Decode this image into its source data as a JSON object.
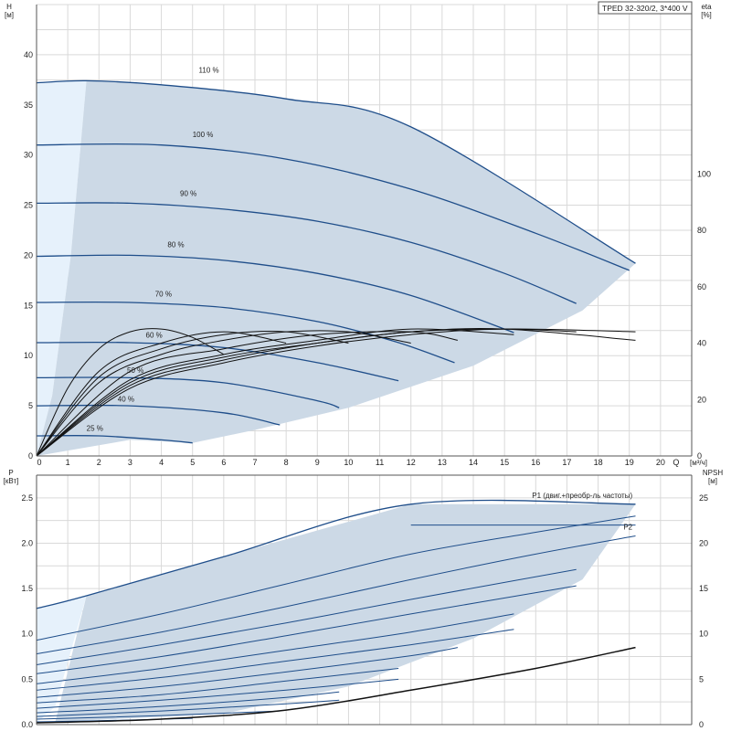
{
  "title": "TPED 32-320/2, 3*400 V",
  "colors": {
    "curve": "#1f4e8a",
    "region": "#ccd9e6",
    "light_region": "#e6f1fb",
    "efficiency": "#111111"
  },
  "chart_data": [
    {
      "type": "line",
      "name": "head",
      "y_axis_label": "H",
      "y_axis_unit": "[м]",
      "right_axis_label": "eta",
      "right_axis_unit": "[%]",
      "x_axis_label": "Q",
      "x_axis_unit": "[м³/ч]",
      "xlim": [
        0,
        21
      ],
      "ylim": [
        0,
        45
      ],
      "right_ylim": [
        0,
        160
      ],
      "x_ticks": [
        "0",
        "1",
        "2",
        "3",
        "4",
        "5",
        "6",
        "7",
        "8",
        "9",
        "10",
        "11",
        "12",
        "13",
        "14",
        "15",
        "16",
        "17",
        "18",
        "19",
        "20"
      ],
      "y_ticks": [
        "0",
        "5",
        "10",
        "15",
        "20",
        "25",
        "30",
        "35",
        "40"
      ],
      "right_ticks": [
        "0",
        "20",
        "40",
        "60",
        "80",
        "100"
      ],
      "grid": true,
      "speed_curves": [
        {
          "label": "110 %",
          "x": [
            0,
            1.6,
            4,
            8,
            12,
            19.2
          ],
          "y": [
            37.2,
            37.4,
            37.0,
            35.6,
            32.8,
            19.2
          ]
        },
        {
          "label": "100 %",
          "x": [
            0,
            4,
            8,
            12,
            16,
            19.0
          ],
          "y": [
            31.0,
            31.0,
            29.6,
            26.6,
            22.2,
            18.5
          ]
        },
        {
          "label": "90 %",
          "x": [
            0,
            3,
            6,
            9,
            12,
            15,
            17.3
          ],
          "y": [
            25.2,
            25.2,
            24.6,
            23.4,
            21.3,
            18.2,
            15.2
          ]
        },
        {
          "label": "80 %",
          "x": [
            0,
            3,
            6,
            9,
            12,
            15.3
          ],
          "y": [
            19.9,
            20.0,
            19.5,
            18.2,
            16.0,
            12.3
          ]
        },
        {
          "label": "70 %",
          "x": [
            0,
            3,
            6,
            9,
            11.5,
            13.4
          ],
          "y": [
            15.3,
            15.3,
            14.8,
            13.4,
            11.4,
            9.3
          ]
        },
        {
          "label": "60 %",
          "x": [
            0,
            3,
            6,
            9,
            11.6
          ],
          "y": [
            11.3,
            11.3,
            10.8,
            9.3,
            7.5
          ]
        },
        {
          "label": "50 %",
          "x": [
            0,
            3,
            6,
            9,
            9.7
          ],
          "y": [
            7.8,
            7.8,
            7.3,
            5.5,
            4.8
          ]
        },
        {
          "label": "40 %",
          "x": [
            0,
            3,
            6,
            7.8
          ],
          "y": [
            5.0,
            5.0,
            4.3,
            3.1
          ]
        },
        {
          "label": "25 %",
          "x": [
            0,
            2,
            4,
            5.0
          ],
          "y": [
            2.0,
            2.0,
            1.6,
            1.3
          ]
        }
      ],
      "efficiency_curves": [
        {
          "x": [
            0,
            1,
            2,
            3,
            4,
            5,
            6
          ],
          "y": [
            0,
            24,
            38,
            44,
            45,
            42,
            36
          ]
        },
        {
          "x": [
            0,
            2,
            4,
            6,
            8
          ],
          "y": [
            0,
            30,
            40,
            44,
            40
          ]
        },
        {
          "x": [
            0,
            2,
            4,
            6,
            8,
            10
          ],
          "y": [
            0,
            28,
            38,
            43,
            44,
            40
          ]
        },
        {
          "x": [
            0,
            2,
            4,
            6,
            8,
            10,
            12
          ],
          "y": [
            0,
            26,
            36,
            41,
            44,
            44,
            40
          ]
        },
        {
          "x": [
            0,
            3,
            6,
            9,
            12,
            13.5
          ],
          "y": [
            0,
            30,
            38,
            43,
            44,
            41
          ]
        },
        {
          "x": [
            0,
            3,
            6,
            9,
            12,
            15.3
          ],
          "y": [
            0,
            27,
            36,
            41,
            45,
            43
          ]
        },
        {
          "x": [
            0,
            3,
            6,
            9,
            12,
            15,
            17.3
          ],
          "y": [
            0,
            26,
            35,
            40,
            44,
            45,
            44
          ]
        },
        {
          "x": [
            0,
            3,
            6,
            9,
            12,
            15,
            19.2
          ],
          "y": [
            0,
            25,
            34,
            40,
            44,
            45,
            41
          ]
        },
        {
          "x": [
            0,
            3,
            6,
            9,
            12,
            15,
            19.2
          ],
          "y": [
            0,
            24,
            33,
            39,
            43,
            45,
            44
          ]
        }
      ]
    },
    {
      "type": "line",
      "name": "power",
      "y_axis_label": "P",
      "y_axis_unit": "[кВт]",
      "right_axis_label": "NPSH",
      "right_axis_unit": "[м]",
      "xlim": [
        0,
        21
      ],
      "ylim": [
        0,
        2.75
      ],
      "right_ylim": [
        0,
        27.5
      ],
      "y_ticks": [
        "0.0",
        "0.5",
        "1.0",
        "1.5",
        "2.0",
        "2.5"
      ],
      "right_ticks": [
        "0",
        "5",
        "10",
        "15",
        "20",
        "25"
      ],
      "grid": true,
      "series_labels": [
        "P1 (двиг.+преобр-ль частоты)",
        "P2"
      ],
      "p1_envelope": {
        "x": [
          0,
          1.6,
          6,
          12,
          19.2
        ],
        "y": [
          1.28,
          1.42,
          1.85,
          2.43,
          2.43
        ]
      },
      "p2_envelope": {
        "x": [
          12,
          19.2
        ],
        "y": [
          2.2,
          2.2
        ]
      },
      "power_curves": [
        {
          "x": [
            0,
            4,
            8,
            12,
            16,
            19.2
          ],
          "y": [
            0.93,
            1.22,
            1.55,
            1.88,
            2.12,
            2.3
          ]
        },
        {
          "x": [
            0,
            4,
            8,
            12,
            16,
            19.2
          ],
          "y": [
            0.78,
            1.02,
            1.3,
            1.6,
            1.88,
            2.08
          ]
        },
        {
          "x": [
            0,
            4,
            8,
            12,
            17.3
          ],
          "y": [
            0.66,
            0.88,
            1.12,
            1.38,
            1.71
          ]
        },
        {
          "x": [
            0,
            4,
            8,
            12,
            17.3
          ],
          "y": [
            0.56,
            0.75,
            0.98,
            1.22,
            1.53
          ]
        },
        {
          "x": [
            0,
            4,
            8,
            12,
            15.3
          ],
          "y": [
            0.45,
            0.62,
            0.82,
            1.02,
            1.22
          ]
        },
        {
          "x": [
            0,
            4,
            8,
            12,
            15.3
          ],
          "y": [
            0.38,
            0.52,
            0.7,
            0.88,
            1.05
          ]
        },
        {
          "x": [
            0,
            4,
            8,
            12,
            13.5
          ],
          "y": [
            0.3,
            0.42,
            0.58,
            0.76,
            0.85
          ]
        },
        {
          "x": [
            0,
            4,
            8,
            11.6
          ],
          "y": [
            0.24,
            0.33,
            0.48,
            0.62
          ]
        },
        {
          "x": [
            0,
            4,
            8,
            11.6
          ],
          "y": [
            0.18,
            0.27,
            0.38,
            0.5
          ]
        },
        {
          "x": [
            0,
            4,
            8,
            9.7
          ],
          "y": [
            0.13,
            0.2,
            0.3,
            0.36
          ]
        },
        {
          "x": [
            0,
            4,
            8,
            9.7
          ],
          "y": [
            0.09,
            0.15,
            0.23,
            0.27
          ]
        },
        {
          "x": [
            0,
            4,
            7.8
          ],
          "y": [
            0.06,
            0.1,
            0.15
          ]
        },
        {
          "x": [
            0,
            3,
            5.0
          ],
          "y": [
            0.03,
            0.05,
            0.07
          ]
        }
      ],
      "npsh_curve": {
        "x": [
          0,
          4,
          8,
          12,
          16,
          19.2
        ],
        "y": [
          0.2,
          0.6,
          1.6,
          3.8,
          6.2,
          8.5
        ]
      }
    }
  ]
}
